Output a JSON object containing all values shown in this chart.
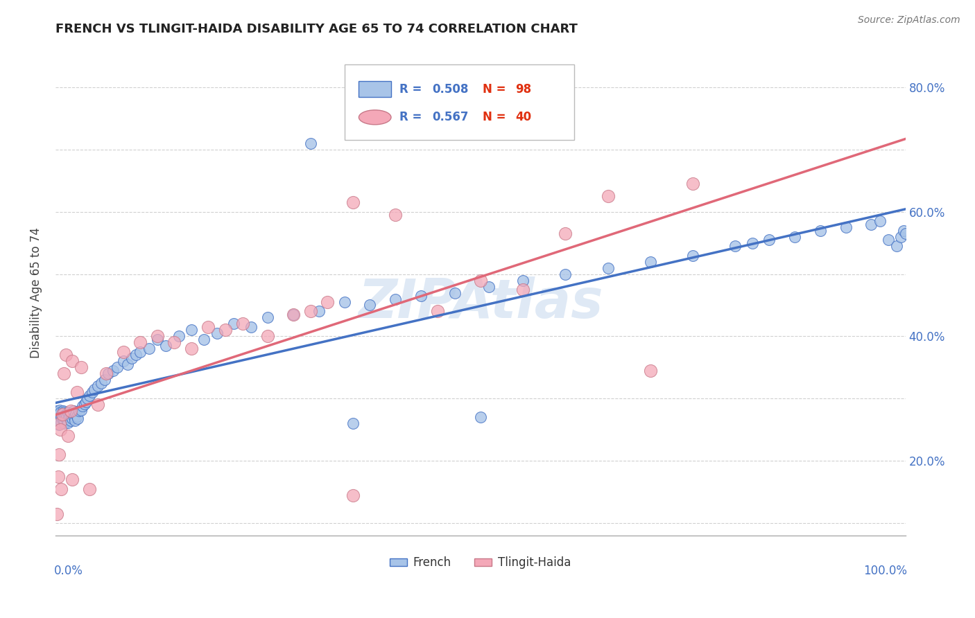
{
  "title": "FRENCH VS TLINGIT-HAIDA DISABILITY AGE 65 TO 74 CORRELATION CHART",
  "source_text": "Source: ZipAtlas.com",
  "ylabel": "Disability Age 65 to 74",
  "watermark": "ZIPAtlas",
  "french_R": 0.508,
  "french_N": 98,
  "tlingit_R": 0.567,
  "tlingit_N": 40,
  "french_color": "#a8c4e8",
  "tlingit_color": "#f4a8b8",
  "french_line_color": "#4472c4",
  "tlingit_line_color": "#e06878",
  "legend_R_color": "#4472c4",
  "legend_N_color": "#e03010",
  "xlim": [
    0.0,
    1.0
  ],
  "ylim": [
    0.08,
    0.86
  ],
  "yticks": [
    0.1,
    0.2,
    0.3,
    0.4,
    0.5,
    0.6,
    0.7,
    0.8
  ],
  "french_x": [
    0.001,
    0.002,
    0.002,
    0.003,
    0.003,
    0.004,
    0.004,
    0.005,
    0.005,
    0.005,
    0.006,
    0.006,
    0.007,
    0.007,
    0.008,
    0.008,
    0.009,
    0.009,
    0.01,
    0.01,
    0.011,
    0.011,
    0.012,
    0.012,
    0.013,
    0.014,
    0.015,
    0.015,
    0.016,
    0.017,
    0.018,
    0.019,
    0.02,
    0.021,
    0.022,
    0.023,
    0.024,
    0.025,
    0.026,
    0.028,
    0.03,
    0.032,
    0.034,
    0.036,
    0.038,
    0.04,
    0.043,
    0.046,
    0.05,
    0.054,
    0.058,
    0.062,
    0.068,
    0.073,
    0.08,
    0.085,
    0.09,
    0.095,
    0.1,
    0.11,
    0.12,
    0.13,
    0.145,
    0.16,
    0.175,
    0.19,
    0.21,
    0.23,
    0.25,
    0.28,
    0.31,
    0.34,
    0.37,
    0.4,
    0.43,
    0.47,
    0.51,
    0.55,
    0.6,
    0.65,
    0.7,
    0.75,
    0.8,
    0.82,
    0.84,
    0.87,
    0.9,
    0.93,
    0.96,
    0.97,
    0.98,
    0.99,
    0.995,
    0.998,
    1.0,
    0.3,
    0.35,
    0.5
  ],
  "french_y": [
    0.27,
    0.26,
    0.28,
    0.265,
    0.275,
    0.258,
    0.272,
    0.268,
    0.276,
    0.282,
    0.265,
    0.278,
    0.262,
    0.271,
    0.267,
    0.274,
    0.269,
    0.28,
    0.265,
    0.278,
    0.26,
    0.273,
    0.268,
    0.275,
    0.27,
    0.265,
    0.278,
    0.262,
    0.27,
    0.272,
    0.265,
    0.275,
    0.268,
    0.28,
    0.27,
    0.265,
    0.275,
    0.272,
    0.268,
    0.28,
    0.282,
    0.288,
    0.292,
    0.295,
    0.3,
    0.305,
    0.31,
    0.315,
    0.32,
    0.325,
    0.33,
    0.34,
    0.345,
    0.35,
    0.36,
    0.355,
    0.365,
    0.37,
    0.375,
    0.38,
    0.395,
    0.385,
    0.4,
    0.41,
    0.395,
    0.405,
    0.42,
    0.415,
    0.43,
    0.435,
    0.44,
    0.455,
    0.45,
    0.46,
    0.465,
    0.47,
    0.48,
    0.49,
    0.5,
    0.51,
    0.52,
    0.53,
    0.545,
    0.55,
    0.555,
    0.56,
    0.57,
    0.575,
    0.58,
    0.585,
    0.555,
    0.545,
    0.56,
    0.57,
    0.565,
    0.71,
    0.26,
    0.27
  ],
  "tlingit_x": [
    0.002,
    0.003,
    0.004,
    0.005,
    0.006,
    0.007,
    0.008,
    0.01,
    0.012,
    0.015,
    0.018,
    0.02,
    0.025,
    0.03,
    0.04,
    0.05,
    0.06,
    0.08,
    0.1,
    0.12,
    0.14,
    0.16,
    0.18,
    0.2,
    0.22,
    0.25,
    0.28,
    0.3,
    0.32,
    0.35,
    0.4,
    0.45,
    0.5,
    0.55,
    0.6,
    0.65,
    0.7,
    0.75,
    0.02,
    0.35
  ],
  "tlingit_y": [
    0.115,
    0.175,
    0.21,
    0.26,
    0.25,
    0.155,
    0.275,
    0.34,
    0.37,
    0.24,
    0.28,
    0.36,
    0.31,
    0.35,
    0.155,
    0.29,
    0.34,
    0.375,
    0.39,
    0.4,
    0.39,
    0.38,
    0.415,
    0.41,
    0.42,
    0.4,
    0.435,
    0.44,
    0.455,
    0.615,
    0.595,
    0.44,
    0.49,
    0.475,
    0.565,
    0.625,
    0.345,
    0.645,
    0.17,
    0.145
  ]
}
